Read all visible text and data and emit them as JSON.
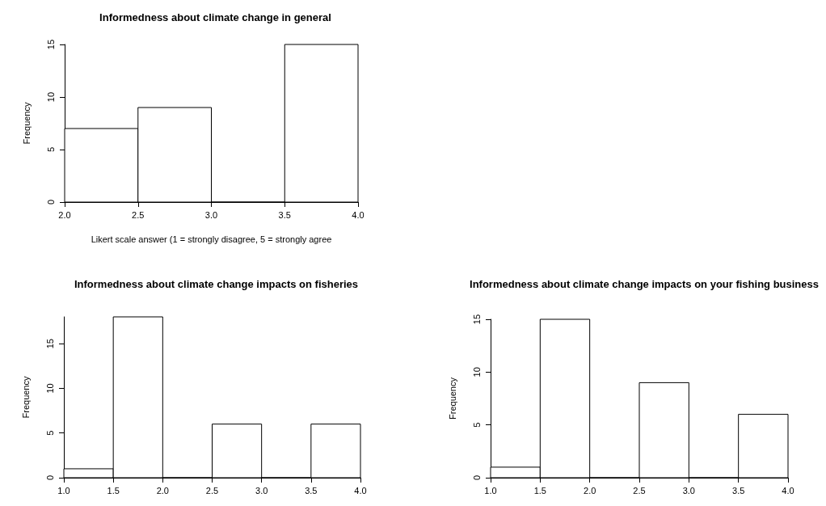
{
  "chart_data": [
    {
      "type": "histogram",
      "title": "Informedness about climate change in general",
      "xlabel": "Likert scale answer (1 = strongly disagree, 5 = strongly agree",
      "ylabel": "Frequency",
      "bins": [
        2,
        2.5,
        3,
        3.5,
        4
      ],
      "values": [
        7,
        9,
        0,
        15
      ],
      "color": "#ffffff",
      "xlim": [
        2,
        4
      ],
      "ylim": [
        0,
        15
      ],
      "xticks": [
        {
          "value": 2,
          "label": "2.0"
        },
        {
          "value": 2.5,
          "label": "2.5"
        },
        {
          "value": 3,
          "label": "3.0"
        },
        {
          "value": 3.5,
          "label": "3.5"
        },
        {
          "value": 4,
          "label": "4.0"
        }
      ],
      "yticks": [
        0,
        5,
        10,
        15
      ]
    },
    {
      "type": "histogram",
      "title": "Informedness about climate change impacts on fisheries",
      "ylabel": "Frequency",
      "bins": [
        1,
        1.5,
        2,
        2.5,
        3,
        3.5,
        4
      ],
      "values": [
        1,
        18,
        0,
        6,
        0,
        6
      ],
      "color": "#ffffff",
      "xlim": [
        1,
        4
      ],
      "ylim": [
        0,
        18
      ],
      "xticks": [
        {
          "value": 1,
          "label": "1.0"
        },
        {
          "value": 1.5,
          "label": "1.5"
        },
        {
          "value": 2,
          "label": "2.0"
        },
        {
          "value": 2.5,
          "label": "2.5"
        },
        {
          "value": 3,
          "label": "3.0"
        },
        {
          "value": 3.5,
          "label": "3.5"
        },
        {
          "value": 4,
          "label": "4.0"
        }
      ],
      "yticks": [
        0,
        5,
        10,
        15
      ]
    },
    {
      "type": "histogram",
      "title": "Informedness about climate change impacts on your fishing business",
      "ylabel": "Frequency",
      "bins": [
        1,
        1.5,
        2,
        2.5,
        3,
        3.5,
        4
      ],
      "values": [
        1,
        15,
        0,
        9,
        0,
        6
      ],
      "color": "#ffffff",
      "xlim": [
        1,
        4
      ],
      "ylim": [
        0,
        15
      ],
      "xticks": [
        {
          "value": 1,
          "label": "1.0"
        },
        {
          "value": 1.5,
          "label": "1.5"
        },
        {
          "value": 2,
          "label": "2.0"
        },
        {
          "value": 2.5,
          "label": "2.5"
        },
        {
          "value": 3,
          "label": "3.0"
        },
        {
          "value": 3.5,
          "label": "3.5"
        },
        {
          "value": 4,
          "label": "4.0"
        }
      ],
      "yticks": [
        0,
        5,
        10,
        15
      ]
    }
  ]
}
